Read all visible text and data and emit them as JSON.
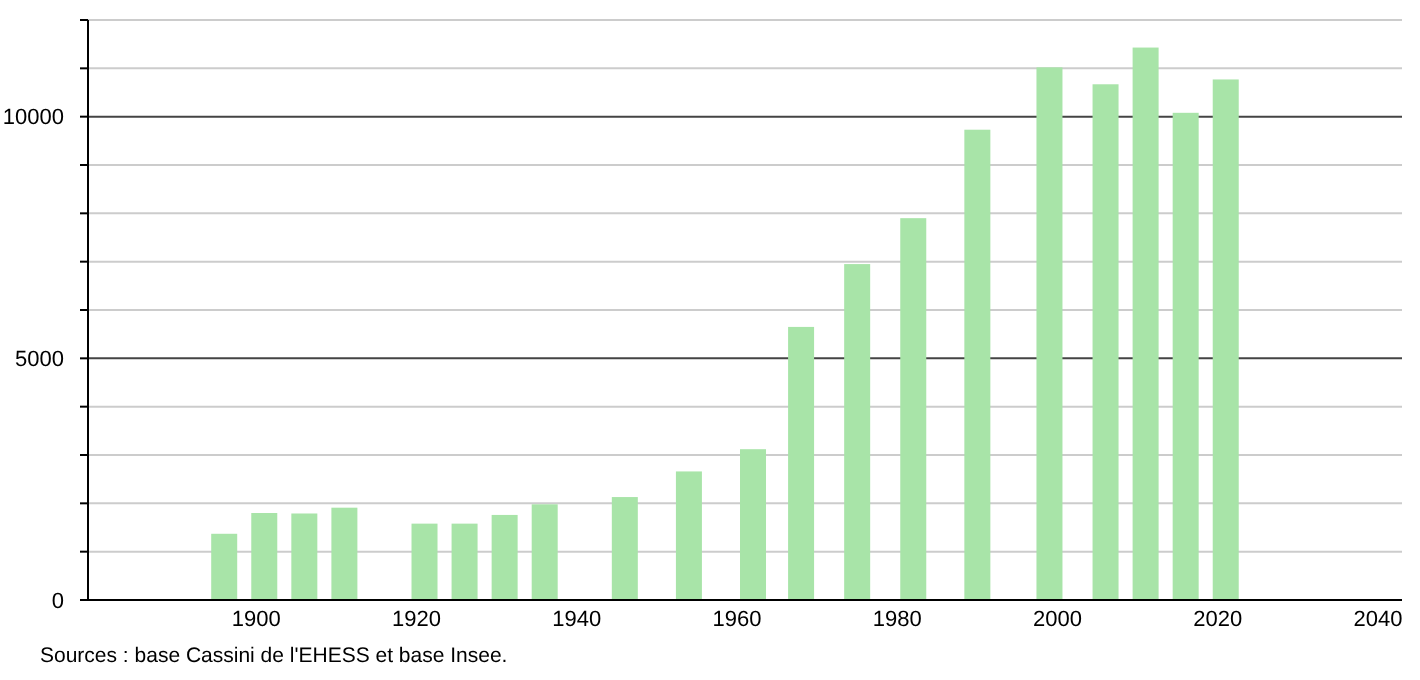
{
  "chart_data": {
    "type": "bar",
    "x": [
      1896,
      1901,
      1906,
      1911,
      1921,
      1926,
      1931,
      1936,
      1946,
      1954,
      1962,
      1968,
      1975,
      1982,
      1990,
      1999,
      2006,
      2011,
      2016,
      2021
    ],
    "values": [
      1370,
      1800,
      1790,
      1910,
      1580,
      1580,
      1760,
      1980,
      2130,
      2660,
      3120,
      5650,
      6950,
      7900,
      9730,
      11020,
      10670,
      11430,
      10080,
      10770
    ],
    "color": "#a8e4a8",
    "xlim": [
      1879,
      2043
    ],
    "xticks": [
      1900,
      1920,
      1940,
      1960,
      1980,
      2000,
      2020,
      2040
    ],
    "ylim": [
      0,
      12000
    ],
    "yticks": [
      0,
      {
        "value": 1000,
        "label": null
      },
      {
        "value": 2000,
        "label": null
      },
      {
        "value": 3000,
        "label": null
      },
      {
        "value": 4000,
        "label": null
      },
      5000,
      {
        "value": 6000,
        "label": null
      },
      {
        "value": 7000,
        "label": null
      },
      {
        "value": 8000,
        "label": null
      },
      {
        "value": 9000,
        "label": null
      },
      10000,
      {
        "value": 11000,
        "label": null
      },
      {
        "value": 12000,
        "label": null
      }
    ],
    "grid": "y",
    "annotations": [
      "Sources : base Cassini de l'EHESS et base Insee."
    ]
  }
}
